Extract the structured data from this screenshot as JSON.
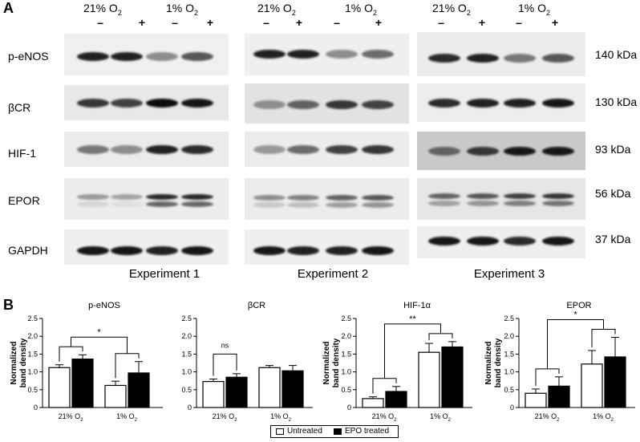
{
  "panel_a": {
    "letter": "A",
    "experiments": [
      {
        "label": "Experiment 1",
        "cond_21": "21% O",
        "cond_1": "1% O",
        "sub": "2"
      },
      {
        "label": "Experiment 2",
        "cond_21": "21% O",
        "cond_1": "1% O",
        "sub": "2"
      },
      {
        "label": "Experiment 3",
        "cond_21": "21% O",
        "cond_1": "1% O",
        "sub": "2"
      }
    ],
    "signs": [
      "–",
      "+",
      "–",
      "+"
    ],
    "rows": [
      {
        "label": "p-eNOS",
        "kda": "140 kDa"
      },
      {
        "label": "βCR",
        "kda": "130 kDa"
      },
      {
        "label": "HIF-1",
        "kda": "93 kDa"
      },
      {
        "label": "EPOR",
        "kda": "56 kDa"
      },
      {
        "label": "GAPDH",
        "kda": "37 kDa"
      }
    ]
  },
  "panel_b": {
    "letter": "B",
    "legend": {
      "untreated": "Untreated",
      "treated": "EPO treated"
    },
    "colors": {
      "untreated": "#ffffff",
      "treated": "#000000"
    }
  },
  "chart_data": [
    {
      "type": "bar",
      "title": "p-eNOS",
      "ylabel": "Normalized band density",
      "ylim": [
        0,
        2.5
      ],
      "yticks": [
        "0",
        "0.5",
        "1.0",
        "1.5",
        "2.0",
        "2.5"
      ],
      "categories": [
        "21% O",
        "1% O"
      ],
      "category_sub": "2",
      "series": [
        {
          "name": "Untreated",
          "values": [
            1.12,
            0.62
          ],
          "errors": [
            0.08,
            0.12
          ]
        },
        {
          "name": "EPO treated",
          "values": [
            1.36,
            0.97
          ],
          "errors": [
            0.12,
            0.32
          ]
        }
      ],
      "significance": "*"
    },
    {
      "type": "bar",
      "title": "βCR",
      "ylabel": "",
      "ylim": [
        0,
        2.5
      ],
      "yticks": [
        "0",
        "0.5",
        "1.0",
        "1.5",
        "2.0",
        "2.5"
      ],
      "categories": [
        "21% O",
        "1% O"
      ],
      "category_sub": "2",
      "series": [
        {
          "name": "Untreated",
          "values": [
            0.73,
            1.12
          ],
          "errors": [
            0.07,
            0.06
          ]
        },
        {
          "name": "EPO treated",
          "values": [
            0.85,
            1.03
          ],
          "errors": [
            0.1,
            0.15
          ]
        }
      ],
      "significance": "ns"
    },
    {
      "type": "bar",
      "title": "HIF-1α",
      "ylabel": "Normalized band density",
      "ylim": [
        0,
        2.5
      ],
      "yticks": [
        "0",
        "0.5",
        "1.0",
        "1.5",
        "2.0",
        "2.5"
      ],
      "categories": [
        "21% O",
        "1% O"
      ],
      "category_sub": "2",
      "series": [
        {
          "name": "Untreated",
          "values": [
            0.25,
            1.55
          ],
          "errors": [
            0.05,
            0.25
          ]
        },
        {
          "name": "EPO treated",
          "values": [
            0.45,
            1.7
          ],
          "errors": [
            0.14,
            0.15
          ]
        }
      ],
      "significance": "**"
    },
    {
      "type": "bar",
      "title": "EPOR",
      "ylabel": "Normalized band density",
      "ylim": [
        0,
        2.5
      ],
      "yticks": [
        "0",
        "0.5",
        "1.0",
        "1.5",
        "2.0",
        "2.5"
      ],
      "categories": [
        "21% O",
        "1% O"
      ],
      "category_sub": "2",
      "series": [
        {
          "name": "Untreated",
          "values": [
            0.4,
            1.22
          ],
          "errors": [
            0.12,
            0.38
          ]
        },
        {
          "name": "EPO treated",
          "values": [
            0.6,
            1.42
          ],
          "errors": [
            0.26,
            0.55
          ]
        }
      ],
      "significance": "*"
    }
  ]
}
